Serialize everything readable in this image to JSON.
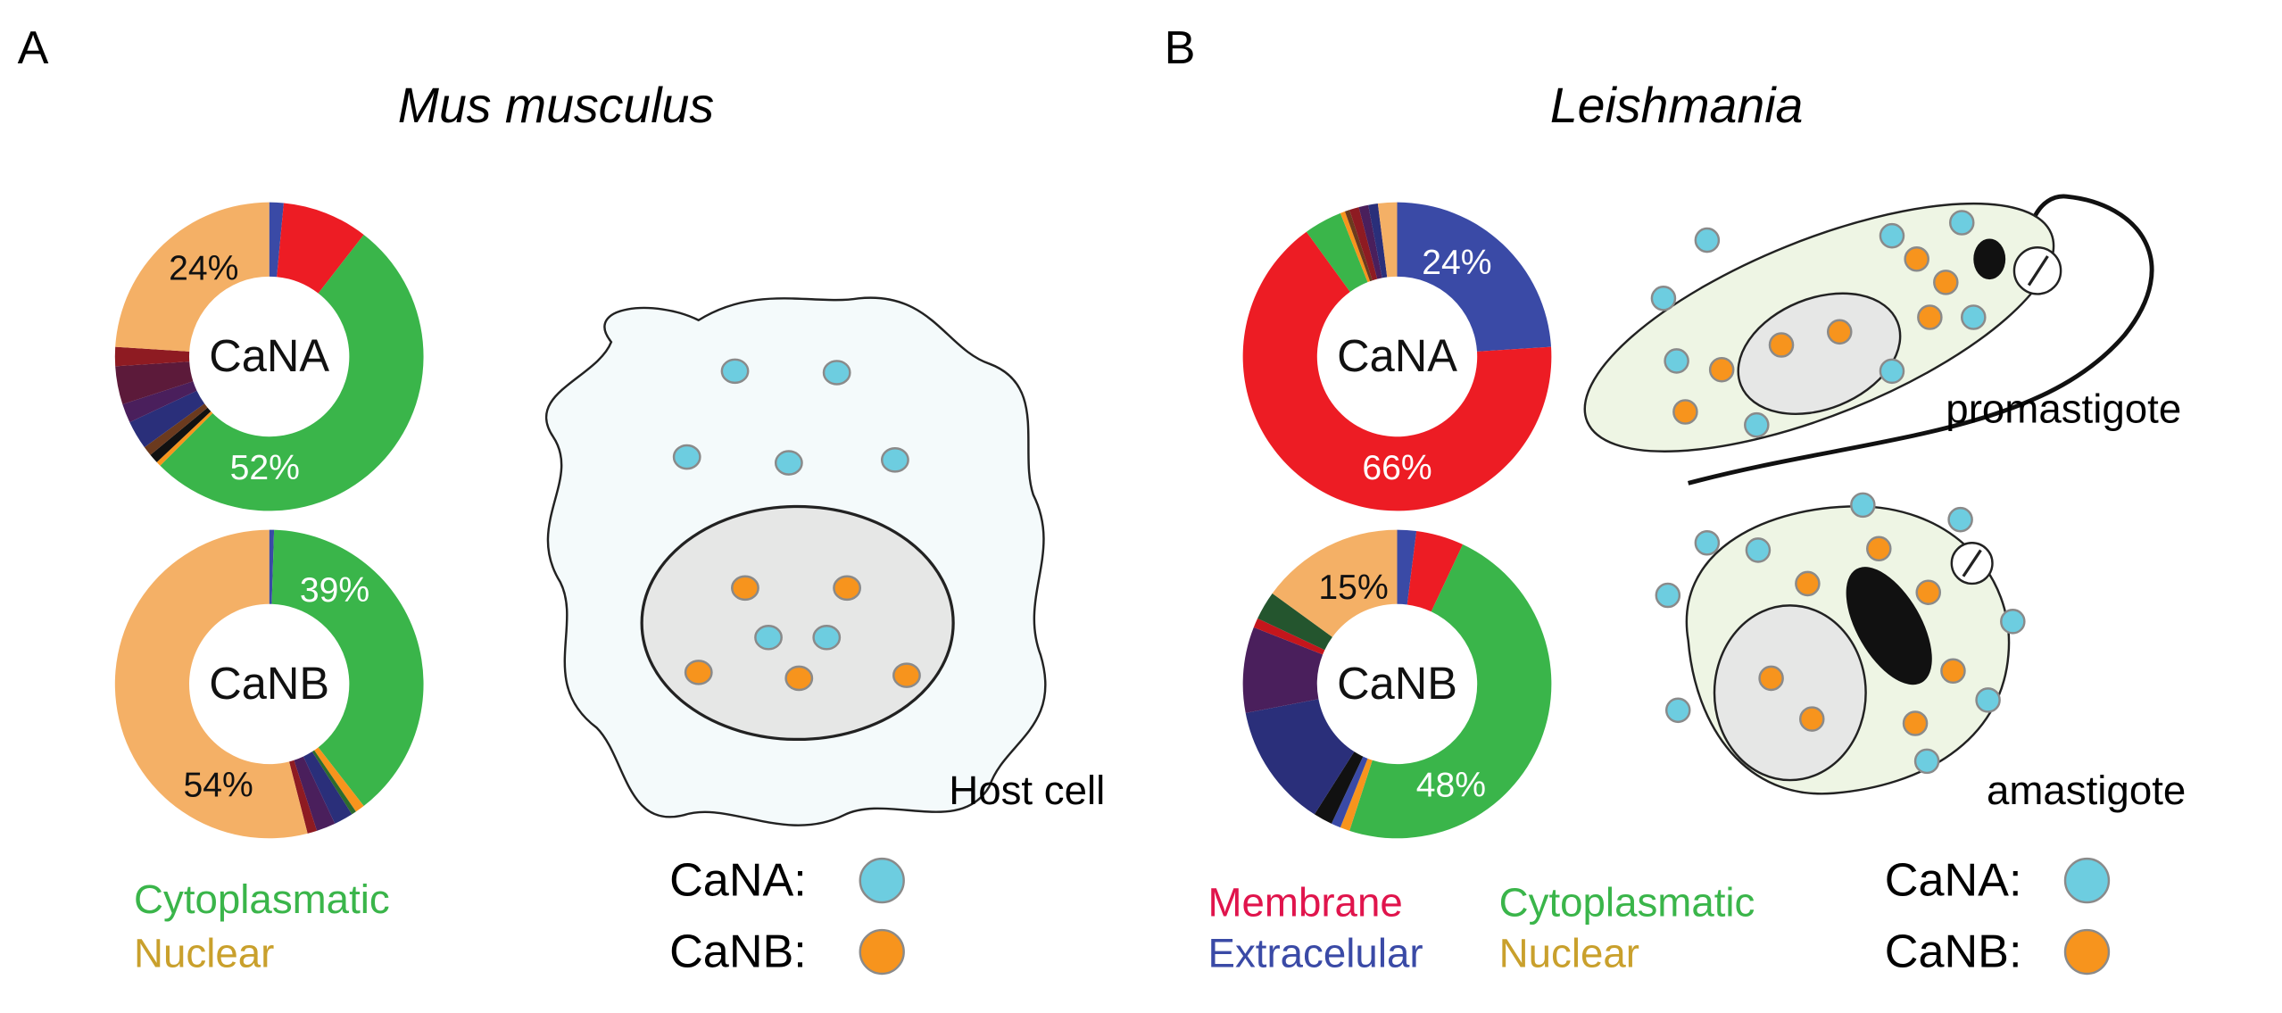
{
  "panels": [
    {
      "label": "A",
      "title": "Mus musculus"
    },
    {
      "label": "B",
      "title": "Leishmania"
    }
  ],
  "chart_data": [
    {
      "type": "pie",
      "title": "CaNA",
      "values": [
        1.5,
        9,
        52,
        0.5,
        1,
        1,
        3,
        2,
        4,
        2,
        24
      ],
      "value_labels": [
        null,
        null,
        "52%",
        null,
        null,
        null,
        null,
        null,
        null,
        null,
        "24%"
      ],
      "colors": [
        "#3a4aa6",
        "#ed1c24",
        "#3ab54a",
        "#f7941d",
        "#111111",
        "#6b3a1e",
        "#2a2f7a",
        "#4a1f5c",
        "#5c1a3a",
        "#8e1b22",
        "#f4b066"
      ]
    },
    {
      "type": "pie",
      "title": "CaNB",
      "values": [
        0.5,
        39,
        1,
        0.5,
        2,
        2,
        1,
        54
      ],
      "value_labels": [
        null,
        "39%",
        null,
        null,
        null,
        null,
        null,
        "54%"
      ],
      "colors": [
        "#3a4aa6",
        "#3ab54a",
        "#f7941d",
        "#2d6b2d",
        "#2a2f7a",
        "#4a1f5c",
        "#8e1b22",
        "#f4b066"
      ]
    },
    {
      "type": "pie",
      "title": "CaNA",
      "values": [
        24,
        66,
        4,
        0.5,
        0.5,
        1,
        1,
        1,
        2
      ],
      "value_labels": [
        "24%",
        "66%",
        null,
        null,
        null,
        null,
        null,
        null,
        null
      ],
      "colors": [
        "#3a4aa6",
        "#ed1c24",
        "#3ab54a",
        "#f7941d",
        "#6b3a1e",
        "#8e1b22",
        "#4a1f5c",
        "#2a2f7a",
        "#f4b066"
      ]
    },
    {
      "type": "pie",
      "title": "CaNB",
      "values": [
        2,
        5,
        48,
        1,
        1,
        2,
        13,
        9,
        1,
        3,
        15
      ],
      "value_labels": [
        null,
        null,
        "48%",
        null,
        null,
        null,
        null,
        null,
        null,
        null,
        "15%"
      ],
      "colors": [
        "#3a4aa6",
        "#ed1c24",
        "#3ab54a",
        "#f7941d",
        "#3a4aa6",
        "#111111",
        "#2a2f7a",
        "#4a1f5c",
        "#c4161c",
        "#24552e",
        "#f4b066"
      ]
    }
  ],
  "legend_a": [
    {
      "name": "Cytoplasmatic",
      "color": "#3ab54a"
    },
    {
      "name": "Nuclear",
      "color": "#c9a02c"
    }
  ],
  "legend_b": [
    {
      "name": "Membrane",
      "color": "#e0144c"
    },
    {
      "name": "Extracelular",
      "color": "#3a4aa6"
    },
    {
      "name": "Cytoplasmatic",
      "color": "#3ab54a"
    },
    {
      "name": "Nuclear",
      "color": "#c9a02c"
    }
  ],
  "markers": [
    {
      "name": "CaNA:",
      "color": "#6dcde0"
    },
    {
      "name": "CaNB:",
      "color": "#f7941d"
    }
  ],
  "diagram": {
    "host_cell": "Host cell",
    "promastigote": "promastigote",
    "amastigote": "amastigote"
  }
}
